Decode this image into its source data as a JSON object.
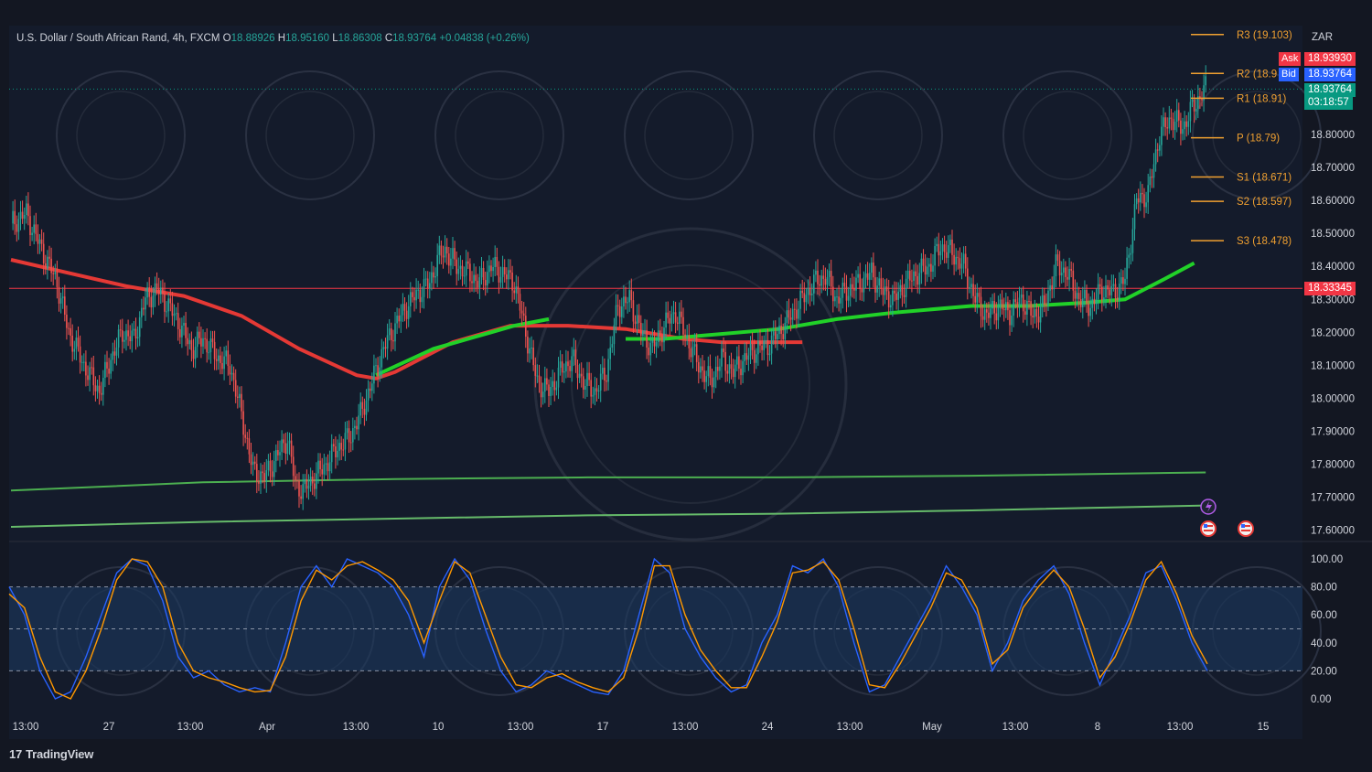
{
  "header": {
    "symbol": "U.S. Dollar / South African Rand, 4h, FXCM",
    "open_label": "O",
    "open": "18.88926",
    "high_label": "H",
    "high": "18.95160",
    "low_label": "L",
    "low": "18.86308",
    "close_label": "C",
    "close": "18.93764",
    "change": "+0.04838 (+0.26%)"
  },
  "currency": "ZAR",
  "price_tags": {
    "ask_label": "Ask",
    "ask": "18.93930",
    "bid_label": "Bid",
    "bid": "18.93764",
    "last": "18.93764",
    "countdown": "03:18:57",
    "level": "18.33345"
  },
  "pivots": [
    {
      "label": "R3 (19.103)",
      "value": 19.103
    },
    {
      "label": "R2 (18.9",
      "value": 18.985
    },
    {
      "label": "R1 (18.91)",
      "value": 18.91
    },
    {
      "label": "P (18.79)",
      "value": 18.79
    },
    {
      "label": "S1 (18.671)",
      "value": 18.671
    },
    {
      "label": "S2 (18.597)",
      "value": 18.597
    },
    {
      "label": "S3 (18.478)",
      "value": 18.478
    }
  ],
  "branding": {
    "tradingview": "TradingView"
  },
  "colors": {
    "up": "#26a69a",
    "down": "#ef5350",
    "pivot": "#f0a030",
    "ask": "#f23645",
    "bid": "#2962ff",
    "last": "#089981"
  },
  "chart_data": [
    {
      "type": "candlestick",
      "title": "U.S. Dollar / South African Rand, 4h, FXCM",
      "ylim": [
        17.55,
        19.1
      ],
      "yticks": [
        18.8,
        18.7,
        18.6,
        18.5,
        18.4,
        18.3,
        18.2,
        18.1,
        18.0,
        17.9,
        17.8,
        17.7,
        17.6
      ],
      "xticks": [
        "13:00",
        "27",
        "13:00",
        "Apr",
        "13:00",
        "10",
        "13:00",
        "17",
        "13:00",
        "24",
        "13:00",
        "May",
        "13:00",
        "8",
        "13:00",
        "15"
      ],
      "horizontal_line": 18.33345,
      "close_path": [
        [
          0,
          18.53
        ],
        [
          8,
          18.56
        ],
        [
          16,
          18.45
        ],
        [
          24,
          18.35
        ],
        [
          30,
          18.2
        ],
        [
          38,
          18.1
        ],
        [
          46,
          18.02
        ],
        [
          52,
          18.12
        ],
        [
          58,
          18.2
        ],
        [
          64,
          18.18
        ],
        [
          70,
          18.3
        ],
        [
          76,
          18.33
        ],
        [
          82,
          18.28
        ],
        [
          88,
          18.22
        ],
        [
          94,
          18.15
        ],
        [
          100,
          18.18
        ],
        [
          108,
          18.12
        ],
        [
          114,
          18.1
        ],
        [
          120,
          17.95
        ],
        [
          126,
          17.78
        ],
        [
          132,
          17.76
        ],
        [
          138,
          17.82
        ],
        [
          144,
          17.88
        ],
        [
          148,
          17.74
        ],
        [
          152,
          17.72
        ],
        [
          158,
          17.76
        ],
        [
          164,
          17.8
        ],
        [
          170,
          17.85
        ],
        [
          176,
          17.88
        ],
        [
          182,
          17.95
        ],
        [
          188,
          18.05
        ],
        [
          194,
          18.15
        ],
        [
          200,
          18.22
        ],
        [
          206,
          18.28
        ],
        [
          212,
          18.32
        ],
        [
          218,
          18.35
        ],
        [
          222,
          18.42
        ],
        [
          226,
          18.45
        ],
        [
          232,
          18.4
        ],
        [
          238,
          18.38
        ],
        [
          244,
          18.35
        ],
        [
          250,
          18.4
        ],
        [
          256,
          18.38
        ],
        [
          262,
          18.35
        ],
        [
          268,
          18.2
        ],
        [
          274,
          18.05
        ],
        [
          280,
          18.02
        ],
        [
          286,
          18.08
        ],
        [
          292,
          18.12
        ],
        [
          298,
          18.05
        ],
        [
          304,
          18.02
        ],
        [
          310,
          18.08
        ],
        [
          316,
          18.28
        ],
        [
          322,
          18.3
        ],
        [
          328,
          18.2
        ],
        [
          334,
          18.15
        ],
        [
          340,
          18.22
        ],
        [
          346,
          18.26
        ],
        [
          352,
          18.18
        ],
        [
          358,
          18.1
        ],
        [
          364,
          18.05
        ],
        [
          370,
          18.12
        ],
        [
          376,
          18.08
        ],
        [
          382,
          18.12
        ],
        [
          388,
          18.15
        ],
        [
          394,
          18.16
        ],
        [
          400,
          18.2
        ],
        [
          406,
          18.25
        ],
        [
          412,
          18.3
        ],
        [
          418,
          18.35
        ],
        [
          424,
          18.37
        ],
        [
          430,
          18.3
        ],
        [
          436,
          18.33
        ],
        [
          442,
          18.35
        ],
        [
          448,
          18.38
        ],
        [
          454,
          18.32
        ],
        [
          460,
          18.3
        ],
        [
          466,
          18.35
        ],
        [
          472,
          18.38
        ],
        [
          478,
          18.4
        ],
        [
          484,
          18.46
        ],
        [
          490,
          18.44
        ],
        [
          496,
          18.4
        ],
        [
          502,
          18.3
        ],
        [
          508,
          18.25
        ],
        [
          514,
          18.28
        ],
        [
          520,
          18.26
        ],
        [
          526,
          18.3
        ],
        [
          532,
          18.25
        ],
        [
          538,
          18.28
        ],
        [
          544,
          18.4
        ],
        [
          550,
          18.38
        ],
        [
          556,
          18.3
        ],
        [
          562,
          18.28
        ],
        [
          568,
          18.33
        ],
        [
          574,
          18.32
        ],
        [
          580,
          18.36
        ],
        [
          586,
          18.6
        ],
        [
          592,
          18.62
        ],
        [
          598,
          18.8
        ],
        [
          604,
          18.85
        ],
        [
          610,
          18.82
        ],
        [
          616,
          18.89
        ],
        [
          622,
          18.94
        ]
      ],
      "series": [
        {
          "name": "",
          "color": "#e53935",
          "path": [
            [
              0,
              18.42
            ],
            [
              30,
              18.38
            ],
            [
              60,
              18.34
            ],
            [
              90,
              18.31
            ],
            [
              120,
              18.25
            ],
            [
              150,
              18.15
            ],
            [
              180,
              18.07
            ],
            [
              190,
              18.06
            ],
            [
              200,
              18.08
            ],
            [
              230,
              18.17
            ],
            [
              260,
              18.22
            ],
            [
              290,
              18.22
            ],
            [
              320,
              18.21
            ],
            [
              350,
              18.18
            ],
            [
              370,
              18.17
            ],
            [
              400,
              18.17
            ],
            [
              412,
              18.17
            ]
          ]
        },
        {
          "name": "",
          "color": "#21d128",
          "path": [
            [
              190,
              18.07
            ],
            [
              220,
              18.15
            ],
            [
              250,
              18.2
            ],
            [
              262,
              18.22
            ],
            [
              280,
              18.24
            ]
          ]
        },
        {
          "name": "",
          "color": "#21d128",
          "path": [
            [
              320,
              18.18
            ],
            [
              340,
              18.18
            ],
            [
              360,
              18.19
            ],
            [
              400,
              18.21
            ],
            [
              430,
              18.24
            ],
            [
              460,
              18.26
            ],
            [
              500,
              18.28
            ],
            [
              530,
              18.28
            ],
            [
              560,
              18.29
            ],
            [
              580,
              18.3
            ],
            [
              600,
              18.36
            ],
            [
              616,
              18.41
            ]
          ]
        },
        {
          "name": "",
          "color": "#4caf50",
          "path": [
            [
              0,
              17.72
            ],
            [
              100,
              17.745
            ],
            [
              200,
              17.755
            ],
            [
              300,
              17.76
            ],
            [
              400,
              17.76
            ],
            [
              500,
              17.765
            ],
            [
              622,
              17.775
            ]
          ]
        },
        {
          "name": "",
          "color": "#66bb6a",
          "path": [
            [
              0,
              17.61
            ],
            [
              100,
              17.625
            ],
            [
              200,
              17.635
            ],
            [
              300,
              17.645
            ],
            [
              400,
              17.65
            ],
            [
              500,
              17.66
            ],
            [
              622,
              17.675
            ]
          ]
        }
      ]
    },
    {
      "type": "line",
      "title": "",
      "ylim": [
        0,
        100
      ],
      "yticks": [
        100.0,
        80.0,
        60.0,
        40.0,
        20.0,
        0.0
      ],
      "yticklabels": [
        "100.00",
        "80.00",
        "60.00",
        "40.00",
        "20.00",
        "0.00"
      ],
      "bands": [
        20,
        50,
        80
      ],
      "series": [
        {
          "name": "",
          "color": "#2962ff",
          "values": [
            80,
            60,
            20,
            0,
            5,
            30,
            60,
            90,
            100,
            95,
            70,
            30,
            15,
            20,
            10,
            5,
            8,
            5,
            40,
            80,
            95,
            80,
            100,
            95,
            90,
            80,
            60,
            30,
            80,
            100,
            85,
            50,
            20,
            5,
            10,
            20,
            15,
            10,
            5,
            3,
            20,
            60,
            100,
            90,
            50,
            30,
            15,
            5,
            10,
            40,
            60,
            95,
            90,
            100,
            80,
            40,
            5,
            10,
            30,
            50,
            70,
            95,
            80,
            60,
            20,
            40,
            70,
            85,
            95,
            75,
            40,
            10,
            35,
            60,
            90,
            95,
            70,
            40,
            20
          ]
        },
        {
          "name": "",
          "color": "#ff9800",
          "values": [
            75,
            65,
            30,
            5,
            0,
            20,
            50,
            85,
            100,
            98,
            80,
            40,
            20,
            15,
            12,
            8,
            5,
            6,
            30,
            70,
            92,
            85,
            95,
            98,
            92,
            85,
            70,
            40,
            70,
            98,
            90,
            60,
            30,
            10,
            8,
            15,
            18,
            12,
            8,
            5,
            15,
            50,
            95,
            95,
            60,
            35,
            20,
            8,
            8,
            30,
            55,
            90,
            92,
            98,
            85,
            50,
            10,
            8,
            25,
            45,
            65,
            90,
            85,
            65,
            25,
            35,
            65,
            80,
            92,
            80,
            50,
            15,
            30,
            55,
            85,
            98,
            75,
            45,
            25
          ]
        }
      ]
    }
  ]
}
